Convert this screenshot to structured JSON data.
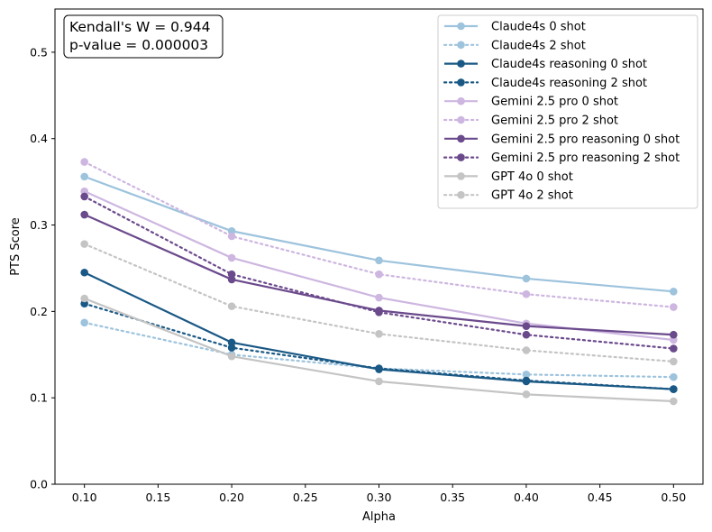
{
  "chart_data": {
    "type": "line",
    "title": "",
    "xlabel": "Alpha",
    "ylabel": "PTS Score",
    "x": [
      0.1,
      0.2,
      0.3,
      0.4,
      0.5
    ],
    "xlim": [
      0.08,
      0.52
    ],
    "ylim": [
      0.0,
      0.55
    ],
    "xticks": [
      0.1,
      0.15,
      0.2,
      0.25,
      0.3,
      0.35,
      0.4,
      0.45,
      0.5
    ],
    "xtick_labels": [
      "0.10",
      "0.15",
      "0.20",
      "0.25",
      "0.30",
      "0.35",
      "0.40",
      "0.45",
      "0.50"
    ],
    "yticks": [
      0.0,
      0.1,
      0.2,
      0.3,
      0.4,
      0.5
    ],
    "ytick_labels": [
      "0.0",
      "0.1",
      "0.2",
      "0.3",
      "0.4",
      "0.5"
    ],
    "grid": false,
    "legend_position": "top-right",
    "annotation": {
      "line1": "Kendall's W = 0.944",
      "line2": "p-value = 0.000003"
    },
    "series": [
      {
        "name": "Claude4s 0 shot",
        "color": "#9dc3dd",
        "style": "solid",
        "values": [
          0.356,
          0.293,
          0.259,
          0.238,
          0.223
        ]
      },
      {
        "name": "Claude4s 2 shot",
        "color": "#9dc3dd",
        "style": "dotted",
        "values": [
          0.187,
          0.15,
          0.134,
          0.127,
          0.124
        ]
      },
      {
        "name": "Claude4s reasoning 0 shot",
        "color": "#1a5985",
        "style": "solid",
        "values": [
          0.245,
          0.164,
          0.133,
          0.119,
          0.11
        ]
      },
      {
        "name": "Claude4s reasoning 2 shot",
        "color": "#1a5985",
        "style": "dotted",
        "values": [
          0.209,
          0.158,
          0.134,
          0.12,
          0.11
        ]
      },
      {
        "name": "Gemini 2.5 pro 0 shot",
        "color": "#cdb6e0",
        "style": "solid",
        "values": [
          0.339,
          0.262,
          0.216,
          0.186,
          0.167
        ]
      },
      {
        "name": "Gemini 2.5 pro 2 shot",
        "color": "#cdb6e0",
        "style": "dotted",
        "values": [
          0.373,
          0.287,
          0.243,
          0.22,
          0.205
        ]
      },
      {
        "name": "Gemini 2.5 pro reasoning 0 shot",
        "color": "#6b4a8c",
        "style": "solid",
        "values": [
          0.312,
          0.237,
          0.201,
          0.183,
          0.173
        ]
      },
      {
        "name": "Gemini 2.5 pro reasoning 2 shot",
        "color": "#6b4a8c",
        "style": "dotted",
        "values": [
          0.333,
          0.243,
          0.199,
          0.173,
          0.157
        ]
      },
      {
        "name": "GPT 4o 0 shot",
        "color": "#c4c4c4",
        "style": "solid",
        "values": [
          0.215,
          0.148,
          0.119,
          0.104,
          0.096
        ]
      },
      {
        "name": "GPT 4o 2 shot",
        "color": "#c4c4c4",
        "style": "dotted",
        "values": [
          0.278,
          0.206,
          0.174,
          0.155,
          0.142
        ]
      }
    ]
  }
}
